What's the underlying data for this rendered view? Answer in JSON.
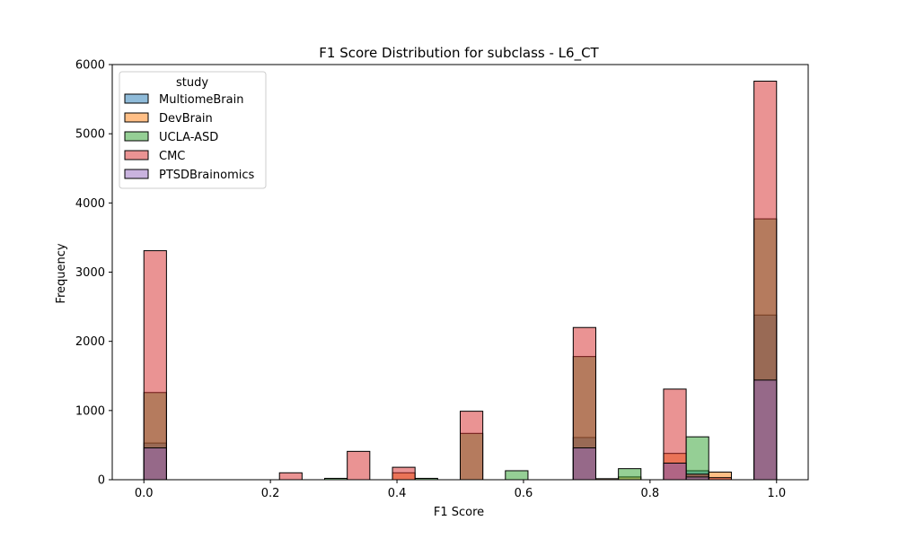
{
  "chart_data": {
    "type": "histogram",
    "title": "F1 Score Distribution for subclass - L6_CT",
    "xlabel": "F1 Score",
    "ylabel": "Frequency",
    "xlim": [
      -0.05,
      1.05
    ],
    "ylim": [
      0,
      6000
    ],
    "xticks": [
      "0.0",
      "0.2",
      "0.4",
      "0.6",
      "0.8",
      "1.0"
    ],
    "yticks": [
      "0",
      "1000",
      "2000",
      "3000",
      "4000",
      "5000",
      "6000"
    ],
    "bin_width": 0.0357,
    "legend": {
      "title": "study",
      "placement": "top-left"
    },
    "series": [
      {
        "name": "MultiomeBrain",
        "color": "#1f77b4",
        "bins": [
          {
            "x0": 0.0,
            "y": 530
          },
          {
            "x0": 0.6786,
            "y": 610
          },
          {
            "x0": 0.8214,
            "y": 240
          },
          {
            "x0": 0.8571,
            "y": 130
          },
          {
            "x0": 0.9643,
            "y": 2380
          }
        ]
      },
      {
        "name": "DevBrain",
        "color": "#ff7f0e",
        "bins": [
          {
            "x0": 0.3929,
            "y": 100
          },
          {
            "x0": 0.7143,
            "y": 15
          },
          {
            "x0": 0.75,
            "y": 40
          },
          {
            "x0": 0.8214,
            "y": 380
          },
          {
            "x0": 0.8929,
            "y": 110
          }
        ]
      },
      {
        "name": "UCLA-ASD",
        "color": "#2ca02c",
        "bins": [
          {
            "x0": 0.0,
            "y": 1260
          },
          {
            "x0": 0.2857,
            "y": 20
          },
          {
            "x0": 0.4286,
            "y": 20
          },
          {
            "x0": 0.5,
            "y": 670
          },
          {
            "x0": 0.5714,
            "y": 130
          },
          {
            "x0": 0.6786,
            "y": 1780
          },
          {
            "x0": 0.75,
            "y": 160
          },
          {
            "x0": 0.8571,
            "y": 620
          },
          {
            "x0": 0.9643,
            "y": 3770
          }
        ]
      },
      {
        "name": "CMC",
        "color": "#d62728",
        "bins": [
          {
            "x0": 0.0,
            "y": 3310
          },
          {
            "x0": 0.2143,
            "y": 100
          },
          {
            "x0": 0.3214,
            "y": 410
          },
          {
            "x0": 0.3929,
            "y": 180
          },
          {
            "x0": 0.5,
            "y": 990
          },
          {
            "x0": 0.6786,
            "y": 2200
          },
          {
            "x0": 0.8214,
            "y": 1310
          },
          {
            "x0": 0.8571,
            "y": 80
          },
          {
            "x0": 0.8929,
            "y": 30
          },
          {
            "x0": 0.9643,
            "y": 5760
          }
        ]
      },
      {
        "name": "PTSDBrainomics",
        "color": "#9467bd",
        "bins": [
          {
            "x0": 0.0,
            "y": 460
          },
          {
            "x0": 0.6786,
            "y": 460
          },
          {
            "x0": 0.8214,
            "y": 240
          },
          {
            "x0": 0.8571,
            "y": 40
          },
          {
            "x0": 0.9643,
            "y": 1440
          }
        ]
      }
    ]
  }
}
